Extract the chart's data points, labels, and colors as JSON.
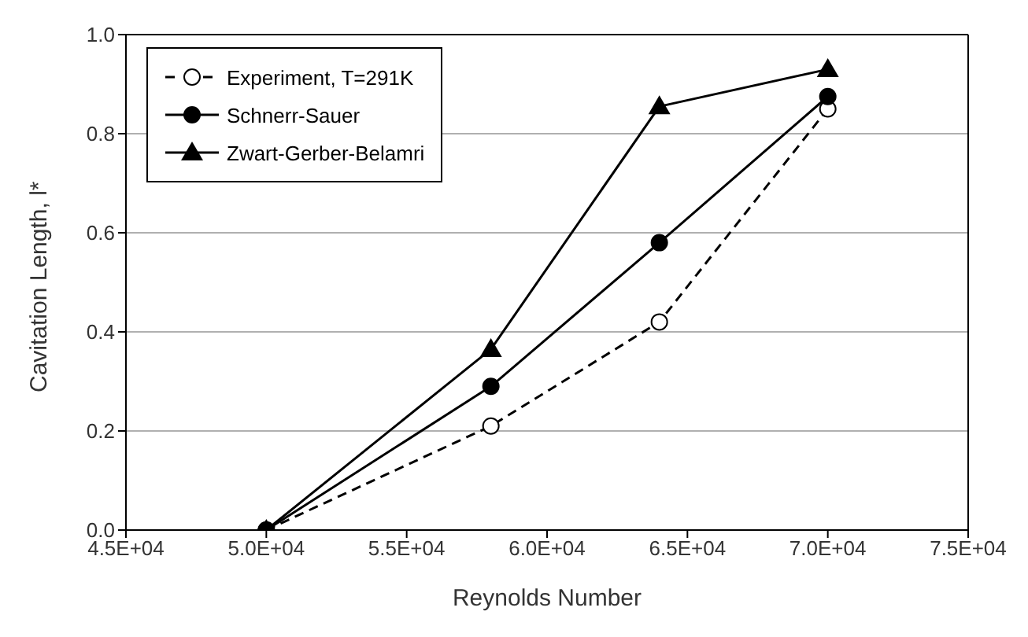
{
  "chart_data": {
    "type": "line",
    "xlabel": "Reynolds Number",
    "ylabel": "Cavitation Length, l*",
    "xlim": [
      45000,
      75000
    ],
    "xticks": [
      {
        "value": 45000,
        "label": "4.5E+04"
      },
      {
        "value": 50000,
        "label": "5.0E+04"
      },
      {
        "value": 55000,
        "label": "5.5E+04"
      },
      {
        "value": 60000,
        "label": "6.0E+04"
      },
      {
        "value": 65000,
        "label": "6.5E+04"
      },
      {
        "value": 70000,
        "label": "7.0E+04"
      },
      {
        "value": 75000,
        "label": "7.5E+04"
      }
    ],
    "ylim": [
      0,
      1
    ],
    "yticks": [
      {
        "value": 0,
        "label": "0.0"
      },
      {
        "value": 0.2,
        "label": "0.2"
      },
      {
        "value": 0.4,
        "label": "0.4"
      },
      {
        "value": 0.6,
        "label": "0.6"
      },
      {
        "value": 0.8,
        "label": "0.8"
      },
      {
        "value": 1,
        "label": "1.0"
      }
    ],
    "grid": "y",
    "legend": "top left",
    "x": [
      50000,
      58000,
      64000,
      70000
    ],
    "series": [
      {
        "name": "Experiment, T=291K",
        "color": "#000000",
        "values": [
          0,
          0.21,
          0.42,
          0.85
        ],
        "marker": "circle",
        "line_style": "dashed"
      },
      {
        "name": "Schnerr-Sauer",
        "color": "#000000",
        "values": [
          0,
          0.29,
          0.58,
          0.875
        ],
        "marker": "circle",
        "line_style": "solid"
      },
      {
        "name": "Zwart-Gerber-Belamri",
        "color": "#000000",
        "values": [
          0,
          0.365,
          0.855,
          0.93
        ],
        "marker": "triangle",
        "line_style": "solid"
      }
    ]
  }
}
